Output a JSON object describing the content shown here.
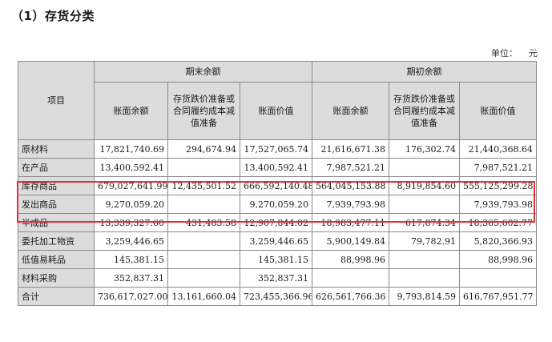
{
  "title": "（1）存货分类",
  "unit": {
    "label": "单位：",
    "value": "元"
  },
  "headers": {
    "item": "项目",
    "end_group": "期末余额",
    "begin_group": "期初余额",
    "book_balance": "账面余额",
    "provision": "存货跌价准备或合同履约成本减值准备",
    "book_value": "账面价值"
  },
  "rows": [
    {
      "name": "原材料",
      "end_balance": "17,821,740.69",
      "end_provision": "294,674.94",
      "end_value": "17,527,065.74",
      "begin_balance": "21,616,671.38",
      "begin_provision": "176,302.74",
      "begin_value": "21,440,368.64"
    },
    {
      "name": "在产品",
      "end_balance": "13,400,592.41",
      "end_provision": "",
      "end_value": "13,400,592.41",
      "begin_balance": "7,987,521.21",
      "begin_provision": "",
      "begin_value": "7,987,521.21"
    },
    {
      "name": "库存商品",
      "end_balance": "679,027,641.99",
      "end_provision": "12,435,501.52",
      "end_value": "666,592,140.48",
      "begin_balance": "564,045,153.88",
      "begin_provision": "8,919,854.60",
      "begin_value": "555,125,299.28"
    },
    {
      "name": "发出商品",
      "end_balance": "9,270,059.20",
      "end_provision": "",
      "end_value": "9,270,059.20",
      "begin_balance": "7,939,793.98",
      "begin_provision": "",
      "begin_value": "7,939,793.98"
    },
    {
      "name": "半成品",
      "end_balance": "13,339,327.60",
      "end_provision": "431,483.58",
      "end_value": "12,907,844.02",
      "begin_balance": "18,983,477.11",
      "begin_provision": "617,874.34",
      "begin_value": "18,365,602.77"
    },
    {
      "name": "委托加工物资",
      "end_balance": "3,259,446.65",
      "end_provision": "",
      "end_value": "3,259,446.65",
      "begin_balance": "5,900,149.84",
      "begin_provision": "79,782.91",
      "begin_value": "5,820,366.93"
    },
    {
      "name": "低值易耗品",
      "end_balance": "145,381.15",
      "end_provision": "",
      "end_value": "145,381.15",
      "begin_balance": "88,998.96",
      "begin_provision": "",
      "begin_value": "88,998.96"
    },
    {
      "name": "材料采购",
      "end_balance": "352,837.31",
      "end_provision": "",
      "end_value": "352,837.31",
      "begin_balance": "",
      "begin_provision": "",
      "begin_value": ""
    },
    {
      "name": "合计",
      "end_balance": "736,617,027.00",
      "end_provision": "13,161,660.04",
      "end_value": "723,455,366.96",
      "begin_balance": "626,561,766.36",
      "begin_provision": "9,793,814.59",
      "begin_value": "616,767,951.77"
    }
  ],
  "highlight_color": "#e0303a"
}
